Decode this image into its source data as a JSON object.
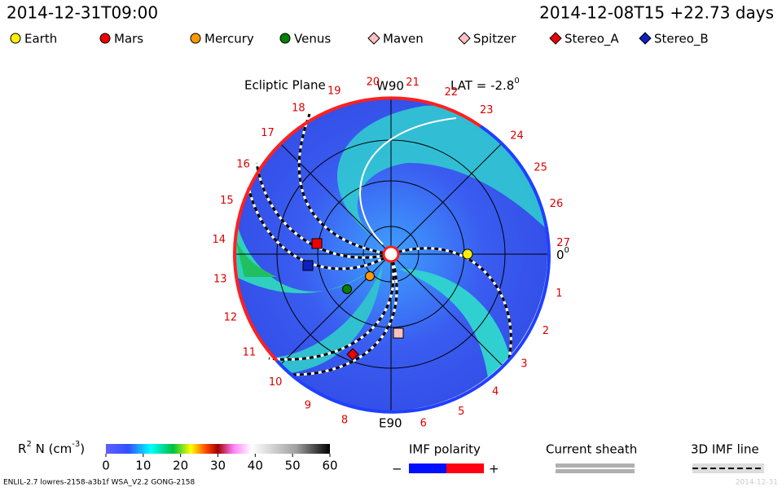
{
  "header": {
    "model_time": "2014-12-31T09:00",
    "run_time": "2014-12-08T15 +22.73 days"
  },
  "legend": [
    "Earth",
    "Mars",
    "Mercury",
    "Venus",
    "Maven",
    "Spitzer",
    "Stereo_A",
    "Stereo_B"
  ],
  "plot": {
    "title": "Ecliptic Plane",
    "top_label": "W90",
    "lat_label": "LAT = -2.8",
    "lat_unit": "0",
    "right_label": "0",
    "right_unit": "0",
    "bottom_label": "E90",
    "day_labels": [
      "1",
      "2",
      "3",
      "4",
      "5",
      "6",
      "8",
      "9",
      "10",
      "11",
      "12",
      "13",
      "14",
      "15",
      "16",
      "17",
      "18",
      "19",
      "20",
      "21",
      "22",
      "23",
      "24",
      "25",
      "26",
      "27"
    ]
  },
  "colorbar": {
    "label": "R",
    "label_sup": "2",
    "label_rest": " N (cm",
    "label_sup2": "-3",
    "label_end": ")",
    "ticks": [
      0,
      10,
      20,
      30,
      40,
      50,
      60
    ]
  },
  "polarity": {
    "title": "IMF polarity",
    "minus": "−",
    "plus": "+"
  },
  "sheath": {
    "title": "Current sheath"
  },
  "imf_line": {
    "title": "3D IMF line"
  },
  "footer": {
    "text": "ENLIL-2.7 lowres-2158-a3b1f WSA_V2.2 GONG-2158",
    "faint": "2014-12-31"
  }
}
